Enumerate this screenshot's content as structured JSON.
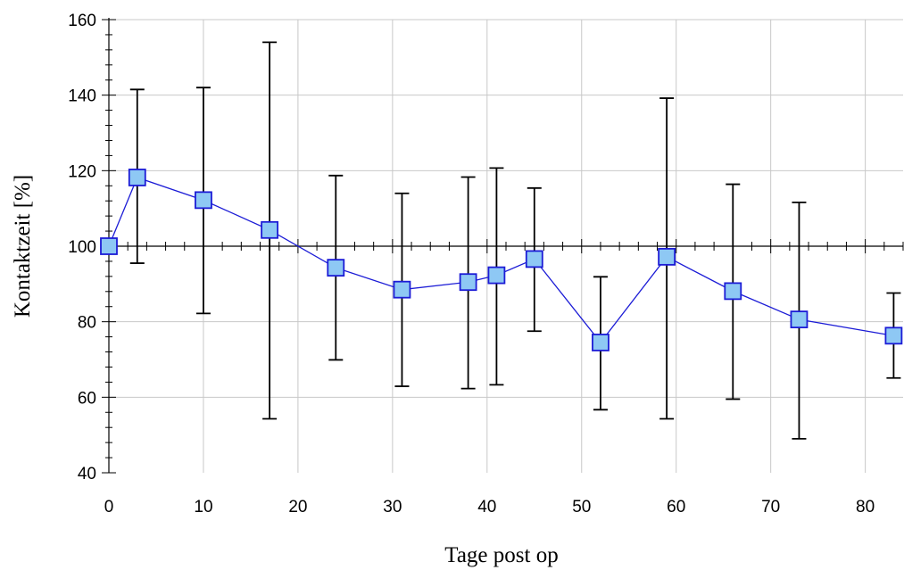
{
  "chart_data": {
    "type": "line",
    "title": "",
    "xlabel": "Tage post op",
    "ylabel": "Kontaktzeit [%]",
    "xlim": [
      0,
      84
    ],
    "ylim": [
      40,
      160
    ],
    "x_ticks": [
      0,
      10,
      20,
      30,
      40,
      50,
      60,
      70,
      80
    ],
    "y_ticks": [
      40,
      60,
      80,
      100,
      120,
      140,
      160
    ],
    "reference_line_y": 100,
    "grid": true,
    "marker": "square",
    "colors": {
      "line": "#1c1cd6",
      "marker_fill": "#8ec8f4",
      "marker_stroke": "#1c1cd6",
      "error_bar": "#000000",
      "grid": "#c8c8c8"
    },
    "series": [
      {
        "x": [
          0,
          3,
          10,
          17,
          24,
          31,
          38,
          41,
          45,
          52,
          59,
          66,
          73,
          83
        ],
        "y": [
          100,
          118.2,
          112.2,
          104.3,
          94.3,
          88.5,
          90.5,
          92.3,
          96.6,
          74.5,
          97.2,
          88.1,
          80.6,
          76.3
        ],
        "upper": [
          100,
          141.5,
          142,
          154,
          118.7,
          114,
          118.3,
          120.7,
          115.4,
          91.9,
          139.2,
          116.4,
          111.6,
          87.6
        ],
        "lower": [
          100,
          95.5,
          82.2,
          54.3,
          69.9,
          62.9,
          62.3,
          63.3,
          77.5,
          56.7,
          54.3,
          59.5,
          49,
          65.1
        ]
      }
    ]
  }
}
